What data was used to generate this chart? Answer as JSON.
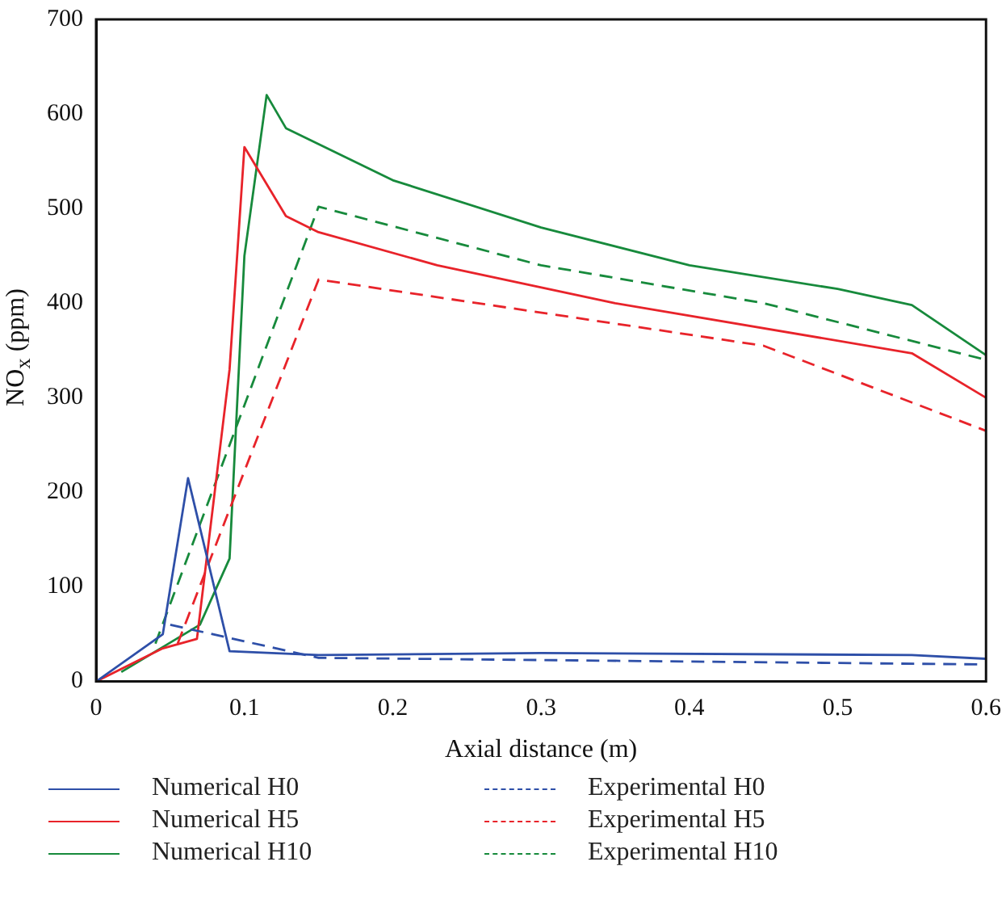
{
  "chart_data": {
    "type": "line",
    "xlabel": "Axial distance (m)",
    "ylabel": "NO$_{x}$ (ppm)",
    "xlim": [
      0,
      0.6
    ],
    "xticks": [
      0,
      0.1,
      0.2,
      0.3,
      0.4,
      0.5,
      0.6
    ],
    "ylim": [
      0,
      700
    ],
    "yticks": [
      0,
      100,
      200,
      300,
      400,
      500,
      600,
      700
    ],
    "grid": false,
    "legend": "bottom",
    "marker": "none",
    "series": [
      {
        "name": "Numerical H0",
        "color": "#2e4fa8",
        "line_style": "solid",
        "x": [
          0,
          0.045,
          0.062,
          0.09,
          0.15,
          0.3,
          0.55,
          0.6
        ],
        "values": [
          0,
          50,
          215,
          32,
          28,
          30,
          28,
          24
        ]
      },
      {
        "name": "Experimental H0",
        "color": "#2e4fa8",
        "line_style": "dashed",
        "x": [
          0.05,
          0.15,
          0.6
        ],
        "values": [
          60,
          25,
          18
        ]
      },
      {
        "name": "Numerical H5",
        "color": "#e8232a",
        "line_style": "solid",
        "x": [
          0,
          0.045,
          0.068,
          0.09,
          0.1,
          0.128,
          0.15,
          0.23,
          0.35,
          0.55,
          0.6
        ],
        "values": [
          0,
          35,
          45,
          330,
          565,
          492,
          475,
          440,
          400,
          347,
          300
        ]
      },
      {
        "name": "Experimental H5",
        "color": "#e8232a",
        "line_style": "dashed",
        "x": [
          0.055,
          0.15,
          0.45,
          0.6
        ],
        "values": [
          40,
          425,
          355,
          265
        ]
      },
      {
        "name": "Numerical H10",
        "color": "#178a3c",
        "line_style": "solid",
        "x": [
          0.017,
          0.07,
          0.09,
          0.1,
          0.115,
          0.128,
          0.2,
          0.3,
          0.4,
          0.5,
          0.55,
          0.6
        ],
        "values": [
          10,
          60,
          130,
          450,
          620,
          585,
          530,
          480,
          440,
          415,
          398,
          345
        ]
      },
      {
        "name": "Experimental H10",
        "color": "#178a3c",
        "line_style": "dashed",
        "x": [
          0.04,
          0.15,
          0.3,
          0.45,
          0.6
        ],
        "values": [
          40,
          502,
          440,
          400,
          340
        ]
      }
    ]
  }
}
